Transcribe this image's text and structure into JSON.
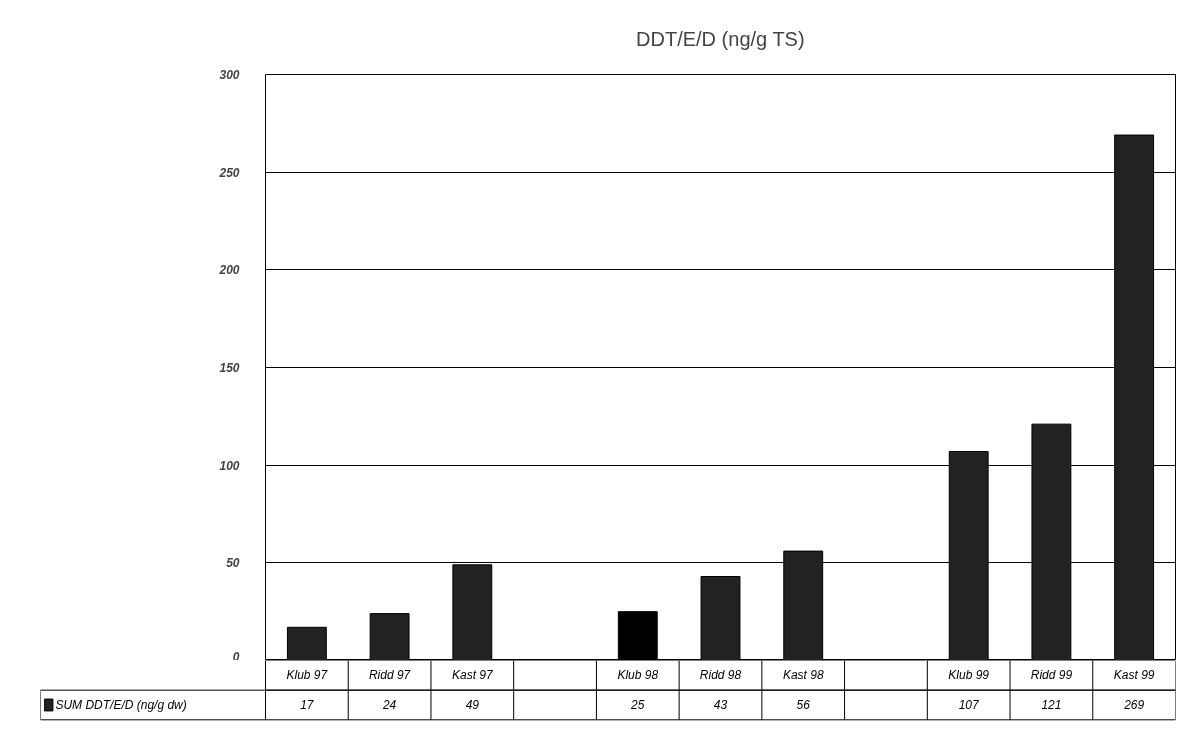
{
  "chart_data": {
    "type": "bar",
    "title": "DDT/E/D (ng/g TS)",
    "categories": [
      "Klub 97",
      "Ridd 97",
      "Kast 97",
      null,
      "Klub 98",
      "Ridd 98",
      "Kast 98",
      null,
      "Klub 99",
      "Ridd 99",
      "Kast 99"
    ],
    "series": [
      {
        "name": "SUM DDT/E/D (ng/g dw)",
        "color": "#222222",
        "colors": [
          "#222222",
          "#222222",
          "#222222",
          "#222222",
          "#000000",
          "#222222",
          "#222222",
          "#222222",
          "#222222",
          "#222222",
          "#222222"
        ],
        "values": [
          17,
          24,
          49,
          null,
          25,
          43,
          56,
          null,
          107,
          121,
          269
        ]
      }
    ],
    "ylim": [
      0,
      300
    ],
    "yticks": [
      0,
      50,
      100,
      150,
      200,
      250,
      300
    ],
    "grid": "y",
    "data_labels": true
  }
}
